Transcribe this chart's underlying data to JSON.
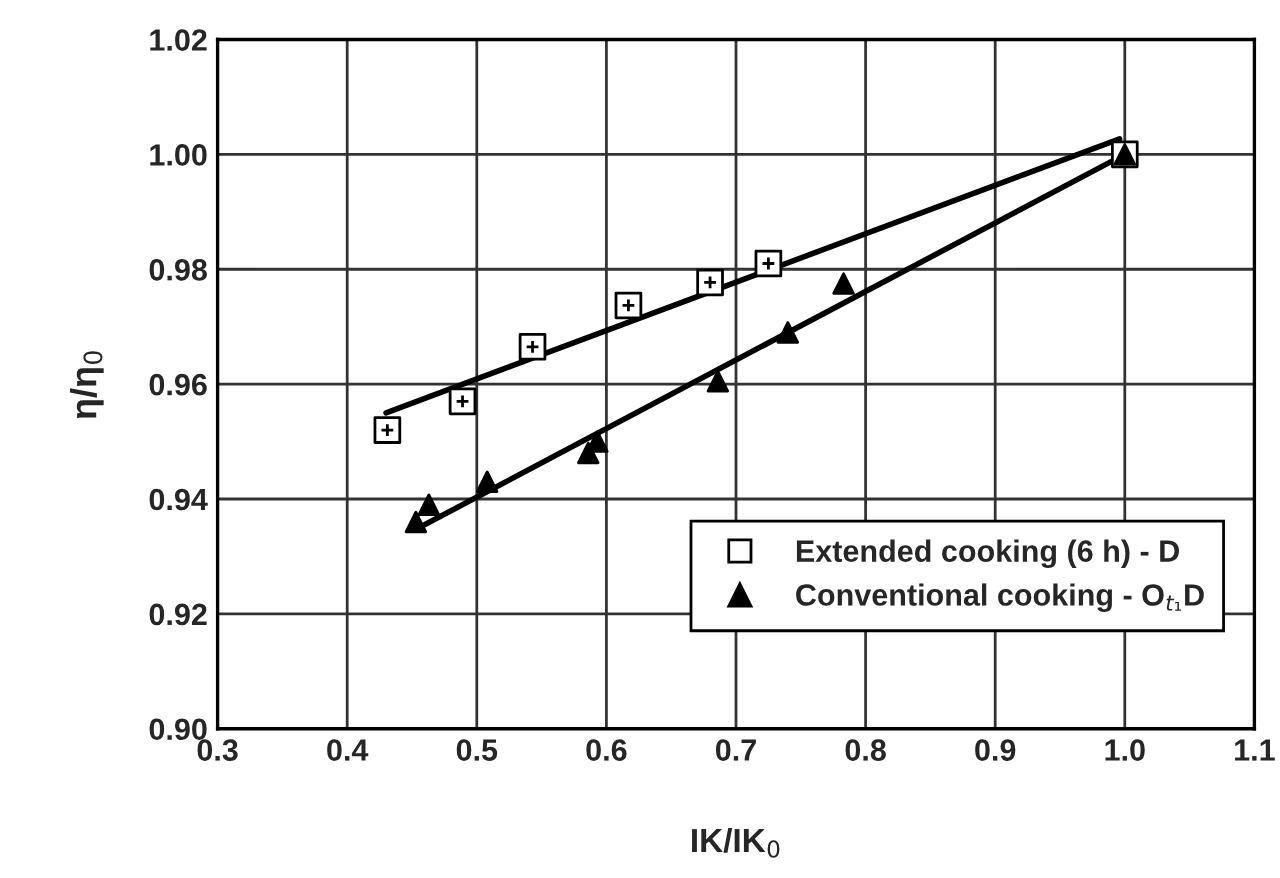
{
  "chart_data": {
    "type": "scatter",
    "xlabel": "IK/IK$_{0}$",
    "ylabel": "η/η$_{0}$",
    "xlim": [
      0.3,
      1.1
    ],
    "xticks": [
      0.3,
      0.4,
      0.5,
      0.6,
      0.7,
      0.8,
      0.9,
      {
        "value": 1.0,
        "label": "1.0"
      },
      1.1
    ],
    "ylim": [
      0.9,
      1.02
    ],
    "yticks": [
      {
        "value": 0.9,
        "label": "0.90"
      },
      0.92,
      0.94,
      0.96,
      0.98,
      {
        "value": 1.0,
        "label": "1.00"
      },
      1.02
    ],
    "grid": true,
    "legend": "bottom right",
    "series": [
      {
        "name": "Extended cooking (6 h) - D",
        "color": "#000000",
        "marker": "square",
        "x": [
          0.431,
          0.489,
          0.543,
          0.617,
          0.68,
          0.725,
          1.0
        ],
        "values": [
          0.952,
          0.957,
          0.9665,
          0.9737,
          0.9777,
          0.981,
          1.0
        ]
      },
      {
        "name": "Conventional cooking - O$_{t₁}$D",
        "color": "#000000",
        "marker": "triangle",
        "x": [
          0.453,
          0.463,
          0.508,
          0.586,
          0.593,
          0.686,
          0.74,
          0.783,
          1.0
        ],
        "values": [
          0.936,
          0.939,
          0.943,
          0.948,
          0.95,
          0.9605,
          0.969,
          0.9775,
          1.0
        ]
      },
      {
        "type": "line",
        "color": "#000000",
        "x": [
          0.43,
          0.996
        ],
        "values": [
          0.955,
          1.0027
        ]
      },
      {
        "type": "line",
        "color": "#000000",
        "x": [
          0.452,
          1.0
        ],
        "values": [
          0.9346,
          1.0
        ]
      }
    ]
  }
}
